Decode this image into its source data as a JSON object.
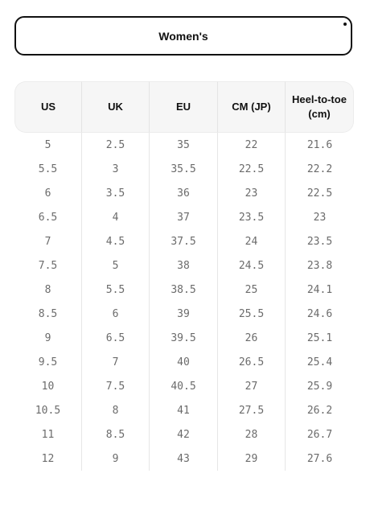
{
  "selector": {
    "label": "Women's"
  },
  "size_table": {
    "headers": [
      "US",
      "UK",
      "EU",
      "CM (JP)",
      "Heel-to-toe (cm)"
    ],
    "rows": [
      [
        "5",
        "2.5",
        "35",
        "22",
        "21.6"
      ],
      [
        "5.5",
        "3",
        "35.5",
        "22.5",
        "22.2"
      ],
      [
        "6",
        "3.5",
        "36",
        "23",
        "22.5"
      ],
      [
        "6.5",
        "4",
        "37",
        "23.5",
        "23"
      ],
      [
        "7",
        "4.5",
        "37.5",
        "24",
        "23.5"
      ],
      [
        "7.5",
        "5",
        "38",
        "24.5",
        "23.8"
      ],
      [
        "8",
        "5.5",
        "38.5",
        "25",
        "24.1"
      ],
      [
        "8.5",
        "6",
        "39",
        "25.5",
        "24.6"
      ],
      [
        "9",
        "6.5",
        "39.5",
        "26",
        "25.1"
      ],
      [
        "9.5",
        "7",
        "40",
        "26.5",
        "25.4"
      ],
      [
        "10",
        "7.5",
        "40.5",
        "27",
        "25.9"
      ],
      [
        "10.5",
        "8",
        "41",
        "27.5",
        "26.2"
      ],
      [
        "11",
        "8.5",
        "42",
        "28",
        "26.7"
      ],
      [
        "12",
        "9",
        "43",
        "29",
        "27.6"
      ]
    ]
  }
}
